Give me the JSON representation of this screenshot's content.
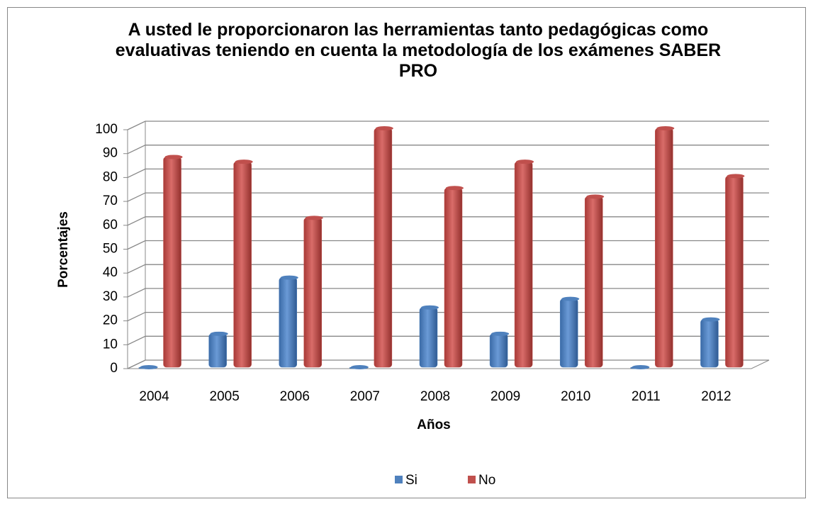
{
  "chart_data": {
    "type": "bar3d",
    "title": "A usted le proporcionaron las herramientas tanto pedagógicas como evaluativas teniendo en cuenta la metodología de los exámenes  SABER PRO",
    "x_label": "Años",
    "y_label": "Porcentajes",
    "categories": [
      "2004",
      "2005",
      "2006",
      "2007",
      "2008",
      "2009",
      "2010",
      "2011",
      "2012"
    ],
    "series": [
      {
        "name": "Si",
        "color": "#4f81bd",
        "values": [
          0,
          14,
          37.5,
          0,
          25,
          14,
          28.6,
          0,
          20
        ]
      },
      {
        "name": "No",
        "color": "#c0504d",
        "values": [
          88,
          86,
          62.5,
          100,
          75,
          86,
          71.4,
          100,
          80
        ]
      }
    ],
    "ylim": [
      0,
      100
    ],
    "yticks": [
      0,
      10,
      20,
      30,
      40,
      50,
      60,
      70,
      80,
      90,
      100
    ],
    "grid": true,
    "legend": "bottom"
  }
}
